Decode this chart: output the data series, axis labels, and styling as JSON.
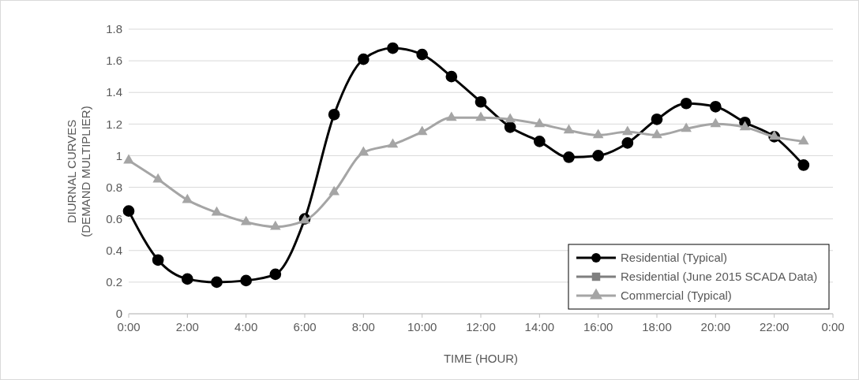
{
  "chart_data": {
    "type": "line",
    "xlabel": "TIME (HOUR)",
    "ylabel": "DIURNAL CURVES\n(DEMAND MULTIPLIER)",
    "x": [
      0,
      1,
      2,
      3,
      4,
      5,
      6,
      7,
      8,
      9,
      10,
      11,
      12,
      13,
      14,
      15,
      16,
      17,
      18,
      19,
      20,
      21,
      22,
      23
    ],
    "xlim": [
      0,
      24
    ],
    "xticks": [
      {
        "value": 0,
        "label": "0:00"
      },
      {
        "value": 2,
        "label": "2:00"
      },
      {
        "value": 4,
        "label": "4:00"
      },
      {
        "value": 6,
        "label": "6:00"
      },
      {
        "value": 8,
        "label": "8:00"
      },
      {
        "value": 10,
        "label": "10:00"
      },
      {
        "value": 12,
        "label": "12:00"
      },
      {
        "value": 14,
        "label": "14:00"
      },
      {
        "value": 16,
        "label": "16:00"
      },
      {
        "value": 18,
        "label": "18:00"
      },
      {
        "value": 20,
        "label": "20:00"
      },
      {
        "value": 22,
        "label": "22:00"
      },
      {
        "value": 24,
        "label": "0:00"
      }
    ],
    "ylim": [
      0,
      1.8
    ],
    "yticks": [
      0,
      0.2,
      0.4,
      0.6,
      0.8,
      1,
      1.2,
      1.4,
      1.6,
      1.8
    ],
    "grid": "y",
    "legend": "bottom right",
    "series": [
      {
        "name": "Residential (Typical)",
        "color": "#000000",
        "marker": "circle",
        "values": [
          0.65,
          0.34,
          0.22,
          0.2,
          0.21,
          0.25,
          0.6,
          1.26,
          1.61,
          1.68,
          1.64,
          1.5,
          1.34,
          1.18,
          1.09,
          0.99,
          1,
          1.08,
          1.23,
          1.33,
          1.31,
          1.21,
          1.12,
          0.94
        ]
      },
      {
        "name": "Residential (June 2015 SCADA Data)",
        "color": "#7f7f7f",
        "marker": "square",
        "values": [
          null,
          null,
          null,
          null,
          null,
          null,
          null,
          null,
          null,
          null,
          null,
          null,
          null,
          null,
          null,
          null,
          null,
          null,
          null,
          null,
          null,
          null,
          null,
          null
        ]
      },
      {
        "name": "Commercial (Typical)",
        "color": "#a5a5a5",
        "marker": "triangle",
        "values": [
          0.97,
          0.85,
          0.72,
          0.64,
          0.58,
          0.55,
          0.59,
          0.77,
          1.02,
          1.07,
          1.15,
          1.24,
          1.24,
          1.23,
          1.2,
          1.16,
          1.13,
          1.15,
          1.13,
          1.17,
          1.2,
          1.18,
          1.12,
          1.09
        ]
      }
    ]
  }
}
